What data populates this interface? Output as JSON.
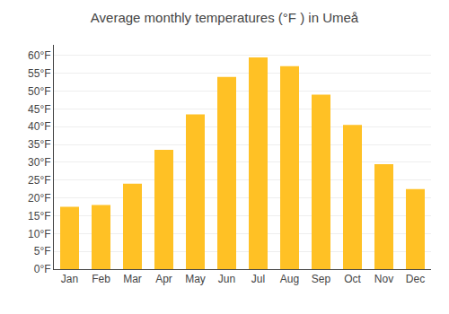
{
  "chart_data": {
    "type": "bar",
    "title": "Average monthly temperatures (°F ) in Umeå",
    "categories": [
      "Jan",
      "Feb",
      "Mar",
      "Apr",
      "May",
      "Jun",
      "Jul",
      "Aug",
      "Sep",
      "Oct",
      "Nov",
      "Dec"
    ],
    "values": [
      17.5,
      18.0,
      24.0,
      33.5,
      43.5,
      54.0,
      59.5,
      57.0,
      49.0,
      40.5,
      29.5,
      22.5
    ],
    "color": "#FFC125",
    "ylim": [
      0,
      63
    ],
    "yticks": [
      {
        "value": 0,
        "label": "0°F"
      },
      {
        "value": 5,
        "label": "5°F"
      },
      {
        "value": 10,
        "label": "10°F"
      },
      {
        "value": 15,
        "label": "15°F"
      },
      {
        "value": 20,
        "label": "20°F"
      },
      {
        "value": 25,
        "label": "25°F"
      },
      {
        "value": 30,
        "label": "30°F"
      },
      {
        "value": 35,
        "label": "35°F"
      },
      {
        "value": 40,
        "label": "40°F"
      },
      {
        "value": 45,
        "label": "45°F"
      },
      {
        "value": 50,
        "label": "50°F"
      },
      {
        "value": 55,
        "label": "55°F"
      },
      {
        "value": 60,
        "label": "60°F"
      }
    ],
    "grid": true
  }
}
